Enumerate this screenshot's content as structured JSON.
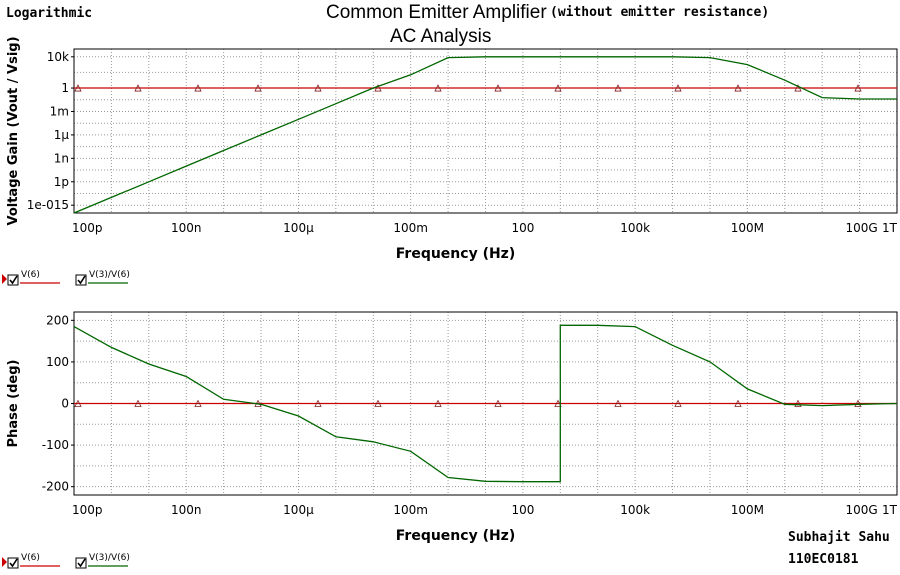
{
  "header": {
    "scale_label": "Logarithmic",
    "title": "Common Emitter Amplifier",
    "subtitle": "(without emitter resistance)",
    "analysis": "AC Analysis"
  },
  "footer": {
    "author": "Subhajit Sahu",
    "roll": "110EC0181"
  },
  "colors": {
    "trace_red": "#cc0000",
    "trace_green": "#006600",
    "grid": "#9a9a9a"
  },
  "chart_data": [
    {
      "type": "line",
      "title": "",
      "xlabel": "Frequency (Hz)",
      "ylabel": "Voltage Gain (Vout / Vsig)",
      "x_scale": "log",
      "y_scale": "log",
      "xlim": [
        1e-10,
        1000000000000.0
      ],
      "ylim": [
        1e-16,
        100000.0
      ],
      "x_ticks": [
        {
          "v": 1e-10,
          "label": "100p"
        },
        {
          "v": 1e-07,
          "label": "100n"
        },
        {
          "v": 0.0001,
          "label": "100µ"
        },
        {
          "v": 0.1,
          "label": "100m"
        },
        {
          "v": 100,
          "label": "100"
        },
        {
          "v": 100000.0,
          "label": "100k"
        },
        {
          "v": 100000000.0,
          "label": "100M"
        },
        {
          "v": 100000000000.0,
          "label": "100G"
        },
        {
          "v": 1000000000000.0,
          "label": "1T"
        }
      ],
      "y_ticks": [
        {
          "v": 10000.0,
          "label": "10k"
        },
        {
          "v": 1,
          "label": "1"
        },
        {
          "v": 0.001,
          "label": "1m"
        },
        {
          "v": 1e-06,
          "label": "1µ"
        },
        {
          "v": 1e-09,
          "label": "1n"
        },
        {
          "v": 1e-12,
          "label": "1p"
        },
        {
          "v": 1e-15,
          "label": "1e-015"
        }
      ],
      "grid": true,
      "series": [
        {
          "name": "V(6)",
          "color": "#cc0000",
          "marker": "triangle",
          "x": [
            1e-10,
            1000000000000.0
          ],
          "y": [
            1,
            1
          ]
        },
        {
          "name": "V(3)/V(6)",
          "color": "#006600",
          "x": [
            1e-10,
            1e-09,
            1e-08,
            1e-07,
            1e-06,
            1e-05,
            0.0001,
            0.001,
            0.01,
            0.1,
            1,
            10,
            100,
            1000,
            10000.0,
            100000.0,
            1000000.0,
            10000000.0,
            100000000.0,
            1000000000.0,
            10000000000.0,
            100000000000.0,
            1000000000000.0
          ],
          "y": [
            1e-16,
            1e-14,
            1e-12,
            1e-10,
            1e-08,
            1e-06,
            0.0001,
            0.01,
            1,
            50,
            8000,
            10000,
            10000,
            10000,
            10000,
            10000,
            10000,
            8000,
            1000,
            10,
            0.06,
            0.04,
            0.04
          ]
        }
      ]
    },
    {
      "type": "line",
      "title": "",
      "xlabel": "Frequency (Hz)",
      "ylabel": "Phase (deg)",
      "x_scale": "log",
      "y_scale": "linear",
      "xlim": [
        1e-10,
        1000000000000.0
      ],
      "ylim": [
        -220,
        220
      ],
      "x_ticks": [
        {
          "v": 1e-10,
          "label": "100p"
        },
        {
          "v": 1e-07,
          "label": "100n"
        },
        {
          "v": 0.0001,
          "label": "100µ"
        },
        {
          "v": 0.1,
          "label": "100m"
        },
        {
          "v": 100,
          "label": "100"
        },
        {
          "v": 100000.0,
          "label": "100k"
        },
        {
          "v": 100000000.0,
          "label": "100M"
        },
        {
          "v": 100000000000.0,
          "label": "100G"
        },
        {
          "v": 1000000000000.0,
          "label": "1T"
        }
      ],
      "y_ticks": [
        {
          "v": 200,
          "label": "200"
        },
        {
          "v": 100,
          "label": "100"
        },
        {
          "v": 0,
          "label": "0"
        },
        {
          "v": -100,
          "label": "-100"
        },
        {
          "v": -200,
          "label": "-200"
        }
      ],
      "grid": true,
      "series": [
        {
          "name": "V(6)",
          "color": "#cc0000",
          "marker": "triangle",
          "x": [
            1e-10,
            1000000000000.0
          ],
          "y": [
            0,
            0
          ]
        },
        {
          "name": "V(3)/V(6)",
          "color": "#006600",
          "x": [
            1e-10,
            1e-09,
            1e-08,
            1e-07,
            1e-06,
            1e-05,
            0.0001,
            0.001,
            0.01,
            0.1,
            1,
            10,
            100,
            999,
            1000,
            10000.0,
            100000.0,
            1000000.0,
            10000000.0,
            100000000.0,
            1000000000.0,
            10000000000.0,
            100000000000.0,
            1000000000000.0
          ],
          "y": [
            185,
            135,
            95,
            65,
            10,
            -2,
            -30,
            -80,
            -92,
            -115,
            -178,
            -187,
            -188,
            -188,
            188,
            188,
            185,
            140,
            100,
            35,
            -2,
            -5,
            -2,
            0
          ]
        }
      ]
    }
  ],
  "legends": [
    {
      "items": [
        {
          "label": "V(6)"
        },
        {
          "label": "V(3)/V(6)"
        }
      ]
    },
    {
      "items": [
        {
          "label": "V(6)"
        },
        {
          "label": "V(3)/V(6)"
        }
      ]
    }
  ]
}
